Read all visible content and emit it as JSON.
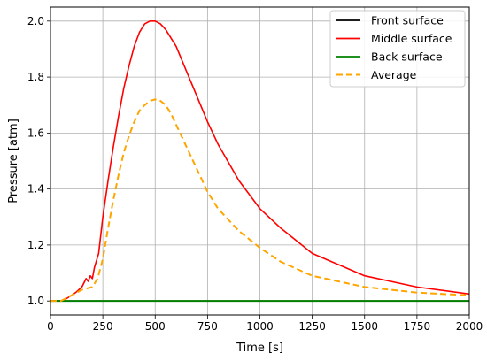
{
  "chart_data": {
    "type": "line",
    "title": "",
    "xlabel": "Time [s]",
    "ylabel": "Pressure [atm]",
    "xlim": [
      0,
      2000
    ],
    "ylim": [
      0.95,
      2.05
    ],
    "xticks": [
      0,
      250,
      500,
      750,
      1000,
      1250,
      1500,
      1750,
      2000
    ],
    "yticks": [
      1.0,
      1.2,
      1.4,
      1.6,
      1.8,
      2.0
    ],
    "xtick_labels": [
      "0",
      "250",
      "500",
      "750",
      "1000",
      "1250",
      "1500",
      "1750",
      "2000"
    ],
    "ytick_labels": [
      "1.0",
      "1.2",
      "1.4",
      "1.6",
      "1.8",
      "2.0"
    ],
    "grid": true,
    "legend_position": "top-right",
    "series": [
      {
        "name": "Front surface",
        "color": "#000000",
        "dash": "solid",
        "x": [
          0,
          2000
        ],
        "y": [
          1.0,
          1.0
        ]
      },
      {
        "name": "Middle surface",
        "color": "#ff0000",
        "dash": "solid",
        "x": [
          0,
          50,
          80,
          120,
          150,
          170,
          180,
          190,
          200,
          210,
          230,
          250,
          275,
          300,
          325,
          350,
          375,
          400,
          425,
          450,
          475,
          500,
          525,
          550,
          600,
          650,
          700,
          750,
          800,
          900,
          1000,
          1100,
          1250,
          1500,
          1750,
          2000
        ],
        "y": [
          1.0,
          1.0,
          1.01,
          1.03,
          1.05,
          1.08,
          1.07,
          1.09,
          1.08,
          1.12,
          1.17,
          1.3,
          1.43,
          1.55,
          1.66,
          1.76,
          1.84,
          1.91,
          1.96,
          1.99,
          2.0,
          2.0,
          1.99,
          1.97,
          1.91,
          1.82,
          1.73,
          1.64,
          1.56,
          1.43,
          1.33,
          1.26,
          1.17,
          1.09,
          1.05,
          1.025
        ]
      },
      {
        "name": "Back surface",
        "color": "#008000",
        "dash": "solid",
        "x": [
          0,
          2000
        ],
        "y": [
          1.0,
          1.0
        ]
      },
      {
        "name": "Average",
        "color": "#ffa500",
        "dash": "dashed",
        "x": [
          0,
          50,
          100,
          150,
          200,
          225,
          250,
          275,
          300,
          325,
          350,
          375,
          400,
          425,
          450,
          475,
          500,
          525,
          550,
          575,
          600,
          650,
          700,
          750,
          800,
          900,
          1000,
          1100,
          1250,
          1500,
          1750,
          2000
        ],
        "y": [
          1.0,
          1.0,
          1.02,
          1.04,
          1.05,
          1.08,
          1.15,
          1.26,
          1.36,
          1.45,
          1.53,
          1.59,
          1.64,
          1.68,
          1.7,
          1.715,
          1.72,
          1.715,
          1.7,
          1.67,
          1.63,
          1.55,
          1.47,
          1.39,
          1.33,
          1.25,
          1.19,
          1.14,
          1.09,
          1.05,
          1.03,
          1.02
        ]
      }
    ]
  }
}
